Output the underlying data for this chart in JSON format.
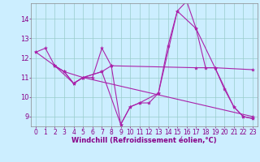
{
  "background_color": "#cceeff",
  "line_color": "#aa22aa",
  "grid_color": "#99cccc",
  "xlabel": "Windchill (Refroidissement éolien,°C)",
  "xlabel_fontsize": 6.0,
  "ylabel_fontsize": 6.0,
  "tick_fontsize": 5.5,
  "xlim": [
    -0.5,
    23.5
  ],
  "ylim": [
    8.5,
    14.8
  ],
  "yticks": [
    9,
    10,
    11,
    12,
    13,
    14
  ],
  "xticks": [
    0,
    1,
    2,
    3,
    4,
    5,
    6,
    7,
    8,
    9,
    10,
    11,
    12,
    13,
    14,
    15,
    16,
    17,
    18,
    19,
    20,
    21,
    22,
    23
  ],
  "series": [
    {
      "x": [
        0,
        1,
        2,
        3,
        4,
        5,
        6,
        7,
        8,
        9,
        10,
        11,
        12,
        13,
        14,
        15,
        16,
        17,
        18,
        19,
        20,
        21,
        22,
        23
      ],
      "y": [
        12.3,
        12.5,
        11.6,
        11.3,
        10.7,
        11.0,
        11.0,
        12.5,
        11.6,
        8.6,
        9.5,
        9.7,
        9.7,
        10.2,
        12.6,
        14.4,
        14.9,
        13.5,
        11.5,
        11.5,
        10.4,
        9.5,
        9.0,
        8.9
      ]
    },
    {
      "x": [
        0,
        2,
        3,
        4,
        5,
        23
      ],
      "y": [
        12.3,
        11.6,
        11.3,
        10.7,
        11.0,
        9.0
      ]
    },
    {
      "x": [
        2,
        3,
        5,
        7,
        8,
        17,
        19,
        23
      ],
      "y": [
        11.6,
        11.3,
        11.0,
        11.3,
        11.6,
        11.5,
        11.5,
        11.4
      ]
    },
    {
      "x": [
        2,
        4,
        5,
        7,
        9,
        10,
        11,
        13,
        15,
        17,
        19,
        21,
        22,
        23
      ],
      "y": [
        11.6,
        10.7,
        11.0,
        11.3,
        8.6,
        9.5,
        9.7,
        10.2,
        14.4,
        13.5,
        11.5,
        9.5,
        9.0,
        8.9
      ]
    }
  ]
}
